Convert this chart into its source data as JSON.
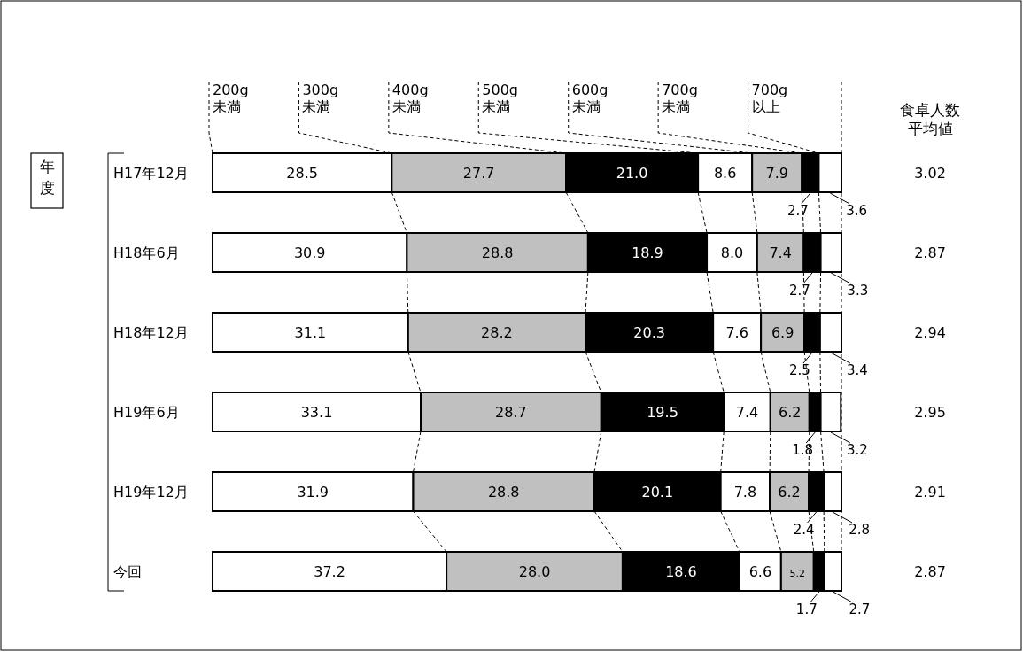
{
  "chart_data": {
    "type": "bar",
    "orientation": "horizontal",
    "stacked": true,
    "ylabel": "年度",
    "categories": [
      "H17年12月",
      "H18年6月",
      "H18年12月",
      "H19年6月",
      "H19年12月",
      "今回"
    ],
    "xlim": [
      0,
      100
    ],
    "legend": "top",
    "series": [
      {
        "name": "200g未満",
        "color": "#ffffff",
        "values": [
          28.5,
          30.9,
          31.1,
          33.1,
          31.9,
          37.2
        ],
        "value_labels": [
          "28.5",
          "30.9",
          "31.1",
          "33.1",
          "31.9",
          "37.2"
        ]
      },
      {
        "name": "300g未満",
        "color": "#c0c0c0",
        "values": [
          27.7,
          28.8,
          28.2,
          28.7,
          28.8,
          28.0
        ],
        "value_labels": [
          "27.7",
          "28.8",
          "28.2",
          "28.7",
          "28.8",
          "28.0"
        ]
      },
      {
        "name": "400g未満",
        "color": "#000000",
        "values": [
          21.0,
          18.9,
          20.3,
          19.5,
          20.1,
          18.6
        ],
        "value_labels": [
          "21.0",
          "18.9",
          "20.3",
          "19.5",
          "20.1",
          "18.6"
        ]
      },
      {
        "name": "500g未満",
        "color": "#ffffff",
        "values": [
          8.6,
          8.0,
          7.6,
          7.4,
          7.8,
          6.6
        ],
        "value_labels": [
          "8.6",
          "8.0",
          "7.6",
          "7.4",
          "7.8",
          "6.6"
        ]
      },
      {
        "name": "600g未満",
        "color": "#c0c0c0",
        "values": [
          7.9,
          7.4,
          6.9,
          6.2,
          6.2,
          5.2
        ],
        "value_labels": [
          "7.9",
          "7.4",
          "6.9",
          "6.2",
          "6.2",
          "5.2"
        ]
      },
      {
        "name": "700g未満",
        "color": "#000000",
        "values": [
          2.7,
          2.7,
          2.5,
          1.8,
          2.4,
          1.7
        ],
        "value_labels": [
          "2.7",
          "2.7",
          "2.5",
          "1.8",
          "2.4",
          "1.7"
        ]
      },
      {
        "name": "700g以上",
        "color": "#ffffff",
        "values": [
          3.6,
          3.3,
          3.4,
          3.2,
          2.8,
          2.7
        ],
        "value_labels": [
          "3.6",
          "3.3",
          "3.4",
          "3.2",
          "2.8",
          "2.7"
        ]
      }
    ],
    "annotations": [
      "食卓人数平均値",
      "3.02",
      "2.87",
      "2.94",
      "2.95",
      "2.91",
      "2.87"
    ]
  }
}
